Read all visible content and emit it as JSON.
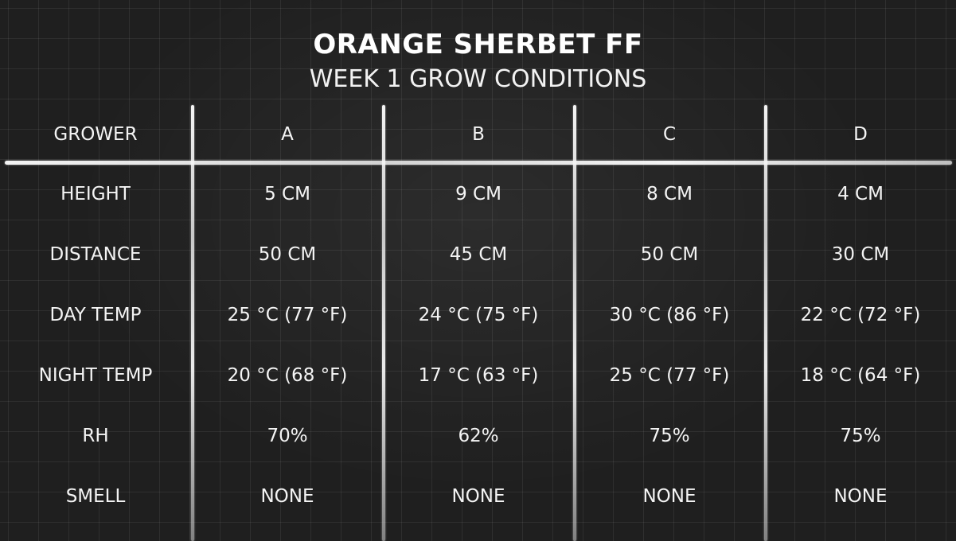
{
  "header": {
    "title": "ORANGE SHERBET FF",
    "subtitle": "WEEK 1 GROW CONDITIONS"
  },
  "table": {
    "header_row": {
      "label": "GROWER",
      "columns": [
        "A",
        "B",
        "C",
        "D"
      ]
    },
    "rows": [
      {
        "label": "HEIGHT",
        "values": [
          "5 CM",
          "9 CM",
          "8 CM",
          "4 CM"
        ]
      },
      {
        "label": "DISTANCE",
        "values": [
          "50 CM",
          "45 CM",
          "50 CM",
          "30 CM"
        ]
      },
      {
        "label": "DAY TEMP",
        "values": [
          "25 °C (77 °F)",
          "24 °C (75 °F)",
          "30 °C (86 °F)",
          "22 °C (72 °F)"
        ]
      },
      {
        "label": "NIGHT TEMP",
        "values": [
          "20 °C (68 °F)",
          "17 °C (63 °F)",
          "25 °C (77 °F)",
          "18 °C (64 °F)"
        ]
      },
      {
        "label": "RH",
        "values": [
          "70%",
          "62%",
          "75%",
          "75%"
        ]
      },
      {
        "label": "SMELL",
        "values": [
          "NONE",
          "NONE",
          "NONE",
          "NONE"
        ]
      }
    ]
  },
  "colors": {
    "background": "#1f1f1f",
    "chalk": "#f4f4f4"
  }
}
